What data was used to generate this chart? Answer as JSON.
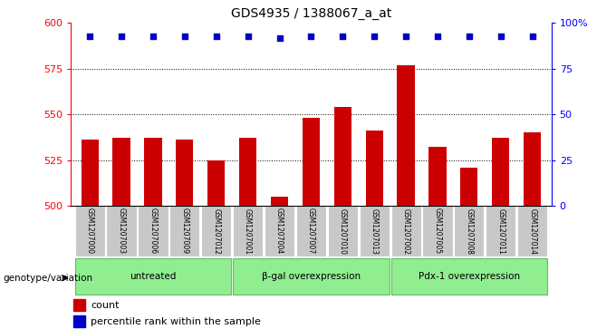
{
  "title": "GDS4935 / 1388067_a_at",
  "samples": [
    "GSM1207000",
    "GSM1207003",
    "GSM1207006",
    "GSM1207009",
    "GSM1207012",
    "GSM1207001",
    "GSM1207004",
    "GSM1207007",
    "GSM1207010",
    "GSM1207013",
    "GSM1207002",
    "GSM1207005",
    "GSM1207008",
    "GSM1207011",
    "GSM1207014"
  ],
  "counts": [
    536,
    537,
    537,
    536,
    525,
    537,
    505,
    548,
    554,
    541,
    577,
    532,
    521,
    537,
    540
  ],
  "percentiles": [
    93,
    93,
    93,
    93,
    93,
    93,
    92,
    93,
    93,
    93,
    93,
    93,
    93,
    93,
    93
  ],
  "group_ranges": [
    [
      0,
      4,
      "untreated"
    ],
    [
      5,
      9,
      "β-gal overexpression"
    ],
    [
      10,
      14,
      "Pdx-1 overexpression"
    ]
  ],
  "bar_color": "#CC0000",
  "dot_color": "#0000CC",
  "ymin": 500,
  "ymax": 600,
  "yticks": [
    500,
    525,
    550,
    575,
    600
  ],
  "right_yticks": [
    0,
    25,
    50,
    75,
    100
  ],
  "right_ylabels": [
    "0",
    "25",
    "50",
    "75",
    "100%"
  ],
  "bg_color_samples": "#C8C8C8",
  "group_color": "#90EE90",
  "group_edge_color": "#60C060",
  "legend_count_label": "count",
  "legend_pct_label": "percentile rank within the sample",
  "genotype_label": "genotype/variation"
}
